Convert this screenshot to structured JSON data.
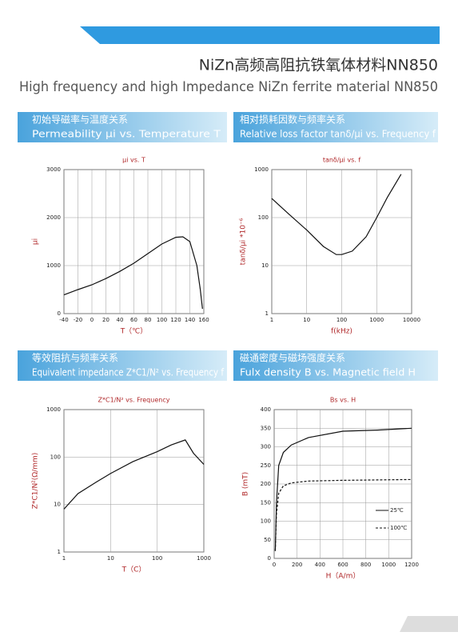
{
  "header": {
    "title_cn": "NiZn高频高阻抗铁氧体材料NN850",
    "title_en": "High frequency and high Impedance NiZn ferrite material NN850"
  },
  "sections": [
    {
      "cn": "初始导磁率与温度关系",
      "en": "Permeability μi vs. Temperature T"
    },
    {
      "cn": "相对损耗因数与频率关系",
      "en": "Relative loss factor tanδ/μi vs. Frequency f"
    },
    {
      "cn": "等效阻抗与频率关系",
      "en": "Equivalent impedance Z*C1/N² vs. Frequency f"
    },
    {
      "cn": "磁通密度与磁场强度关系",
      "en": "Fulx density B vs. Magnetic field H"
    }
  ],
  "chart_data": [
    {
      "type": "line",
      "title": "μi vs. T",
      "xlabel": "T（℃）",
      "ylabel": "μi",
      "x": [
        -40,
        -20,
        0,
        20,
        40,
        60,
        80,
        100,
        120,
        130,
        140,
        150,
        155,
        158
      ],
      "series": [
        {
          "color": "#111111",
          "values": [
            390,
            500,
            600,
            730,
            880,
            1050,
            1250,
            1450,
            1590,
            1600,
            1500,
            1000,
            500,
            100
          ]
        }
      ],
      "xlim": [
        -40,
        160
      ],
      "xticks": [
        -40,
        -20,
        0,
        20,
        40,
        60,
        80,
        100,
        120,
        140,
        160
      ],
      "ylim": [
        0,
        3000
      ],
      "yticks": [
        0,
        1000,
        2000,
        3000
      ],
      "grid": true
    },
    {
      "type": "line",
      "title": "tanδ/μi vs. f",
      "xlabel": "f(kHz)",
      "ylabel": "tanδ/μi *10⁻⁶",
      "xscale": "log",
      "yscale": "log",
      "x": [
        1,
        3,
        10,
        30,
        70,
        100,
        200,
        500,
        1000,
        2000,
        5000
      ],
      "series": [
        {
          "color": "#111111",
          "values": [
            250,
            120,
            55,
            25,
            17,
            17,
            20,
            40,
            100,
            260,
            800
          ]
        }
      ],
      "xlim": [
        1,
        10000
      ],
      "xticks": [
        1,
        10,
        100,
        1000,
        10000
      ],
      "ylim": [
        1,
        1000
      ],
      "yticks": [
        1,
        10,
        100,
        1000
      ],
      "grid": true
    },
    {
      "type": "line",
      "title": "Z*C1/N² vs. Frequency",
      "xlabel": "T（C）",
      "ylabel": "Z*C1/N²(Ω/mm)",
      "xscale": "log",
      "yscale": "log",
      "x": [
        1,
        2,
        5,
        10,
        30,
        100,
        200,
        400,
        600,
        1000
      ],
      "series": [
        {
          "color": "#111111",
          "values": [
            8,
            17,
            30,
            45,
            80,
            130,
            180,
            230,
            120,
            70
          ]
        }
      ],
      "xlim": [
        1,
        1000
      ],
      "xticks": [
        1,
        10,
        100,
        1000
      ],
      "ylim": [
        1,
        1000
      ],
      "yticks": [
        1,
        10,
        100,
        1000
      ],
      "grid": true
    },
    {
      "type": "line",
      "title": "Bs vs. H",
      "xlabel": "H（A/m）",
      "ylabel": "B (mT)",
      "x": [
        10,
        20,
        40,
        80,
        150,
        300,
        600,
        900,
        1200
      ],
      "series": [
        {
          "name": "25℃",
          "color": "#111111",
          "values": [
            20,
            150,
            250,
            285,
            305,
            325,
            342,
            345,
            350
          ]
        },
        {
          "name": "100℃",
          "color": "#111111",
          "dash": true,
          "values": [
            20,
            120,
            175,
            195,
            203,
            208,
            210,
            211,
            212
          ]
        }
      ],
      "xlim": [
        0,
        1200
      ],
      "xticks": [
        0,
        200,
        400,
        600,
        800,
        1000,
        1200
      ],
      "ylim": [
        0,
        400
      ],
      "yticks": [
        0,
        50,
        100,
        150,
        200,
        250,
        300,
        350,
        400
      ],
      "grid": true,
      "legend": "lower right"
    }
  ]
}
